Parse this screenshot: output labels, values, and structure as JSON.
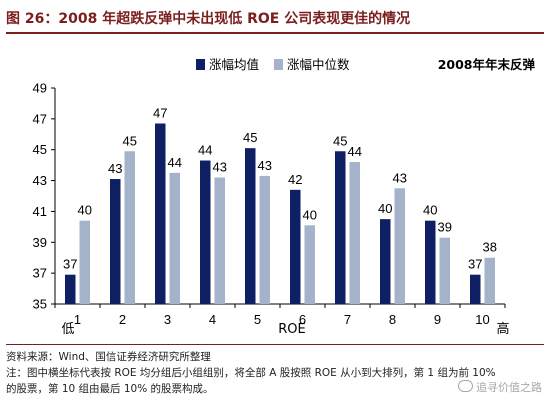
{
  "header": {
    "title": "图 26：2008 年超跌反弹中未出现低 ROE 公司表现更佳的情况"
  },
  "notes": {
    "source": "资料来源：Wind、国信证券经济研究所整理",
    "line1": "注：图中横坐标代表按 ROE 均分组后小组组别，将全部 A 股按照 ROE 从小到大排列，第 1 组为前 10%",
    "line2": "的股票，第 10 组由最后 10% 的股票构成。"
  },
  "watermark": "追寻价值之路",
  "chart_data": {
    "type": "bar",
    "title": "2008年年末反弹",
    "xlabel": "ROE",
    "x_low_label": "低",
    "x_high_label": "高",
    "categories": [
      "1",
      "2",
      "3",
      "4",
      "5",
      "6",
      "7",
      "8",
      "9",
      "10"
    ],
    "ylim": [
      35,
      49
    ],
    "yticks": [
      35,
      37,
      39,
      41,
      43,
      45,
      47,
      49
    ],
    "grid": false,
    "legend_position": "top",
    "series": [
      {
        "name": "涨幅均值",
        "color": "#0f1f63",
        "values": [
          36.9,
          43.1,
          46.7,
          44.3,
          45.1,
          42.4,
          44.9,
          40.5,
          40.4,
          36.9
        ],
        "labels": [
          "37",
          "43",
          "47",
          "44",
          "45",
          "42",
          "45",
          "40",
          "40",
          "37"
        ]
      },
      {
        "name": "涨幅中位数",
        "color": "#a4b3c9",
        "values": [
          40.4,
          44.9,
          43.5,
          43.2,
          43.3,
          40.1,
          44.2,
          42.5,
          39.3,
          38.0
        ],
        "labels": [
          "40",
          "45",
          "44",
          "43",
          "43",
          "40",
          "44",
          "43",
          "39",
          "38"
        ]
      }
    ]
  }
}
